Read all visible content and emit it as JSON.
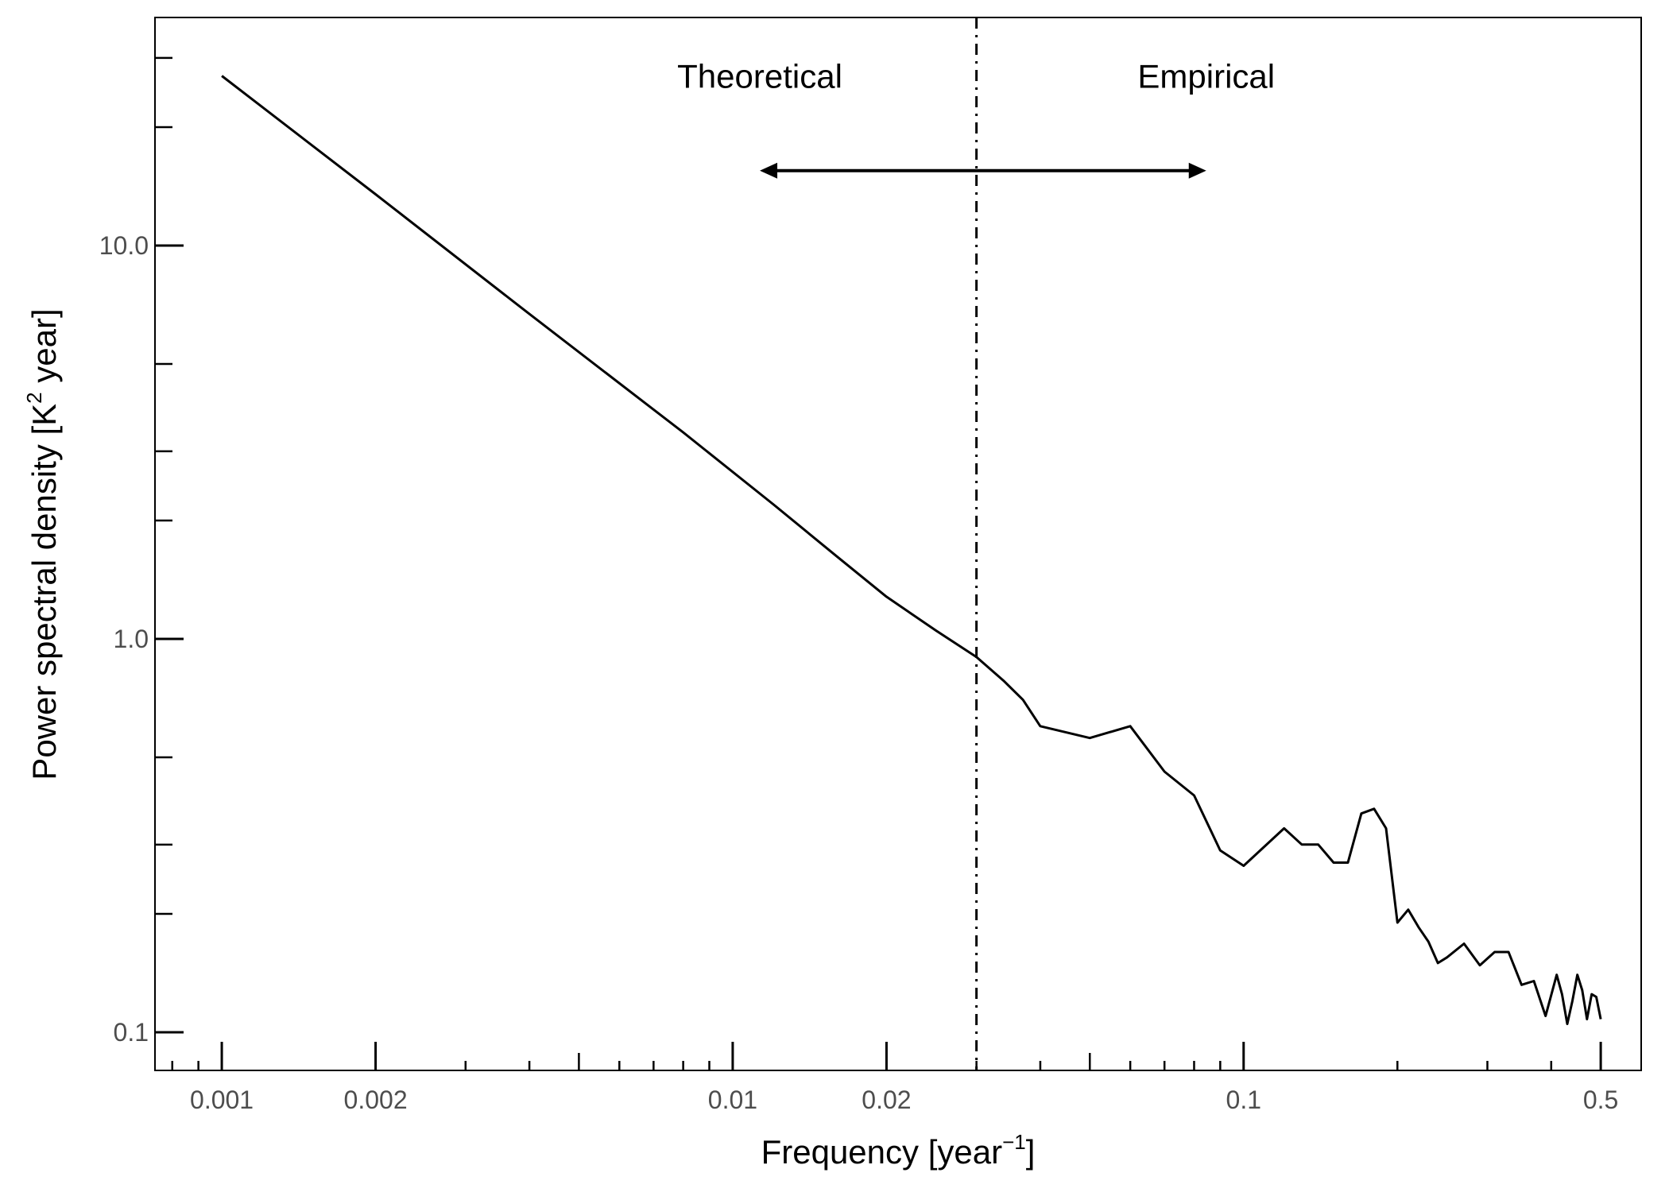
{
  "chart_data": {
    "type": "line",
    "title": "",
    "xlabel": {
      "main": "Frequency [year",
      "sup": "−1",
      "tail": "]"
    },
    "ylabel": {
      "main": "Power spectral density [K",
      "sup": "2",
      "tail": " year]"
    },
    "xscale": "log",
    "yscale": "log",
    "xlim": [
      0.00074,
      0.6
    ],
    "ylim": [
      0.08,
      38
    ],
    "x_major_ticks": [
      {
        "value": 0.001,
        "label": "0.001"
      },
      {
        "value": 0.002,
        "label": "0.002"
      },
      {
        "value": 0.01,
        "label": "0.01"
      },
      {
        "value": 0.02,
        "label": "0.02"
      },
      {
        "value": 0.1,
        "label": "0.1"
      },
      {
        "value": 0.5,
        "label": "0.5"
      }
    ],
    "y_major_ticks": [
      {
        "value": 10,
        "label": "10.0"
      },
      {
        "value": 1,
        "label": "1.0"
      },
      {
        "value": 0.1,
        "label": "0.1"
      }
    ],
    "grid": false,
    "legend": "none",
    "divider": {
      "x": 0.03,
      "style": "dash-dot"
    },
    "annotations": [
      {
        "text": "Theoretical",
        "x": 0.0113,
        "y": 27
      },
      {
        "text": "Empirical",
        "x": 0.0845,
        "y": 27
      }
    ],
    "arrow": {
      "x_start": 0.0113,
      "x_end": 0.0845,
      "y": 15.5,
      "heads": "both"
    },
    "series": [
      {
        "color": "#000000",
        "x": [
          0.001,
          0.002,
          0.004,
          0.008,
          0.012,
          0.016,
          0.02,
          0.025,
          0.03,
          0.034,
          0.037,
          0.04,
          0.05,
          0.06,
          0.07,
          0.08,
          0.09,
          0.1,
          0.12,
          0.13,
          0.14,
          0.15,
          0.16,
          0.17,
          0.18,
          0.19,
          0.2,
          0.21,
          0.22,
          0.23,
          0.24,
          0.25,
          0.27,
          0.29,
          0.31,
          0.33,
          0.35,
          0.37,
          0.39,
          0.41,
          0.42,
          0.43,
          0.44,
          0.45,
          0.46,
          0.47,
          0.48,
          0.49,
          0.5
        ],
        "y": [
          27,
          13.5,
          6.7,
          3.35,
          2.2,
          1.62,
          1.28,
          1.05,
          0.9,
          0.78,
          0.7,
          0.6,
          0.56,
          0.6,
          0.46,
          0.4,
          0.29,
          0.265,
          0.33,
          0.3,
          0.3,
          0.27,
          0.27,
          0.36,
          0.37,
          0.33,
          0.19,
          0.205,
          0.185,
          0.17,
          0.15,
          0.155,
          0.168,
          0.148,
          0.16,
          0.16,
          0.132,
          0.135,
          0.11,
          0.14,
          0.125,
          0.105,
          0.12,
          0.14,
          0.128,
          0.108,
          0.125,
          0.123,
          0.108
        ]
      }
    ]
  }
}
